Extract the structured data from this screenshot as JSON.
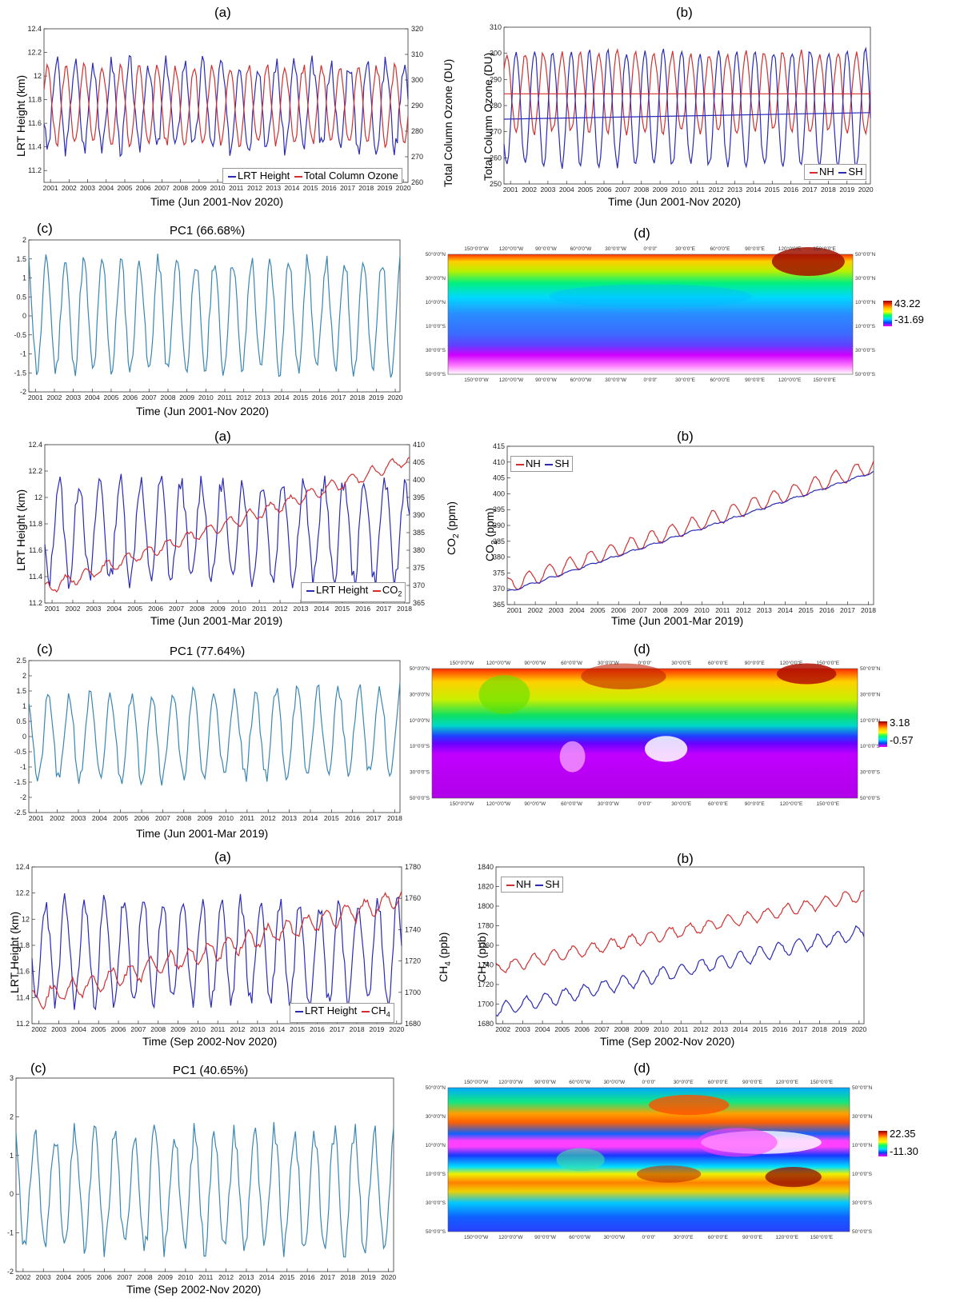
{
  "panel_labels": {
    "a": "(a)",
    "b": "(b)",
    "c": "(c)",
    "d": "(d)"
  },
  "chart_data": [
    {
      "id": "oz_a",
      "type": "line",
      "label": "(a)",
      "x_ticks": [
        "2001",
        "2002",
        "2003",
        "2004",
        "2005",
        "2006",
        "2007",
        "2008",
        "2009",
        "2010",
        "2011",
        "2012",
        "2013",
        "2014",
        "2015",
        "2016",
        "2017",
        "2018",
        "2019",
        "2020"
      ],
      "xlabel": "Time (Jun 2001-Nov 2020)",
      "ylabel": "LRT Height (km)",
      "ylim": [
        11.1,
        12.4
      ],
      "y_ticks": [
        11.2,
        11.4,
        11.6,
        11.8,
        12,
        12.2,
        12.4
      ],
      "y2label": "Total Column Ozone (DU)",
      "y2lim": [
        260,
        320
      ],
      "y2_ticks": [
        260,
        270,
        280,
        290,
        300,
        310,
        320
      ],
      "legend": "bottom-right",
      "series": [
        {
          "name": "LRT Height",
          "axis": "left",
          "color": "#2b2bb8",
          "mean": 11.75,
          "amp": 0.36,
          "trend": 0.0,
          "phase": 0.55,
          "noise": 0.08,
          "seed": 3
        },
        {
          "name": "Total Column Ozone",
          "axis": "right",
          "color": "#d23030",
          "mean": 290,
          "amp": 15,
          "trend": 0,
          "phase": 0.05,
          "noise": 2,
          "seed": 5
        }
      ]
    },
    {
      "id": "oz_b",
      "type": "line",
      "label": "(b)",
      "x_ticks": [
        "2001",
        "2002",
        "2003",
        "2004",
        "2005",
        "2006",
        "2007",
        "2008",
        "2009",
        "2010",
        "2011",
        "2012",
        "2013",
        "2014",
        "2015",
        "2016",
        "2017",
        "2018",
        "2019",
        "2020"
      ],
      "xlabel": "Time (Jun 2001-Nov 2020)",
      "ylabel": "Total Column Ozone (DU)",
      "ylim": [
        250,
        310
      ],
      "y_ticks": [
        250,
        260,
        270,
        280,
        290,
        300,
        310
      ],
      "legend": "bottom-right",
      "series": [
        {
          "name": "NH",
          "color": "#d23030",
          "mean": 285,
          "amp": 15,
          "trend": 0,
          "phase": 0.1,
          "noise": 1.5,
          "seed": 7
        },
        {
          "name": "SH",
          "color": "#2b2bb8",
          "mean": 279,
          "amp": 22,
          "trend": 0,
          "phase": 0.6,
          "noise": 1.5,
          "seed": 9
        }
      ],
      "trend_lines": [
        {
          "color": "#d23030",
          "from": 284.5,
          "to": 284.5
        },
        {
          "color": "#2b2bb8",
          "from": 274.8,
          "to": 277.3
        }
      ]
    },
    {
      "id": "oz_c",
      "type": "line",
      "label": "(c)",
      "title": "PC1 (66.68%)",
      "x_ticks": [
        "2001",
        "2002",
        "2003",
        "2004",
        "2005",
        "2006",
        "2007",
        "2008",
        "2009",
        "2010",
        "2011",
        "2012",
        "2013",
        "2014",
        "2015",
        "2016",
        "2017",
        "2018",
        "2019",
        "2020"
      ],
      "xlabel": "Time (Jun 2001-Nov 2020)",
      "ylim": [
        -2,
        2
      ],
      "y_ticks": [
        -2,
        -1.5,
        -1,
        -0.5,
        0,
        0.5,
        1,
        1.5,
        2
      ],
      "series": [
        {
          "name": "",
          "color": "#3a86b4",
          "mean": 0,
          "amp": 1.45,
          "trend": 0,
          "phase": 0.3,
          "noise": 0.22,
          "seed": 11
        }
      ]
    },
    {
      "id": "oz_d",
      "type": "heatmap",
      "label": "(d)",
      "top_ticks": [
        "150°0'0\"W",
        "120°0'0\"W",
        "90°0'0\"W",
        "60°0'0\"W",
        "30°0'0\"W",
        "0°0'0\"",
        "30°0'0\"E",
        "60°0'0\"E",
        "90°0'0\"E",
        "120°0'0\"E",
        "150°0'0\"E"
      ],
      "left_ticks": [
        "50°0'0\"N",
        "30°0'0\"N",
        "10°0'0\"N",
        "10°0'0\"S",
        "30°0'0\"S",
        "50°0'0\"S"
      ],
      "colorbar": {
        "max": "43.22",
        "min": "-31.69"
      }
    },
    {
      "id": "co2_a",
      "type": "line",
      "label": "(a)",
      "x_ticks": [
        "2001",
        "2002",
        "2003",
        "2004",
        "2005",
        "2006",
        "2007",
        "2008",
        "2009",
        "2010",
        "2011",
        "2012",
        "2013",
        "2014",
        "2015",
        "2016",
        "2017",
        "2018"
      ],
      "xlabel": "Time (Jun 2001-Mar 2019)",
      "ylabel": "LRT Height (km)",
      "ylim": [
        11.2,
        12.4
      ],
      "y_ticks": [
        11.2,
        11.4,
        11.6,
        11.8,
        12,
        12.2,
        12.4
      ],
      "y2label": "CO2 (ppm)",
      "y2lim": [
        365,
        410
      ],
      "y2_ticks": [
        365,
        370,
        375,
        380,
        385,
        390,
        395,
        400,
        405,
        410
      ],
      "legend": "bottom-right",
      "series": [
        {
          "name": "LRT Height",
          "axis": "left",
          "color": "#2b2bb8",
          "mean": 11.75,
          "amp": 0.38,
          "trend": 0,
          "phase": 0.55,
          "noise": 0.08,
          "seed": 13
        },
        {
          "name": "CO2",
          "axis": "right",
          "color": "#d23030",
          "mean": 369,
          "amp": 1.6,
          "trend": 37,
          "phase": 0.2,
          "noise": 0.5,
          "seed": 15
        }
      ]
    },
    {
      "id": "co2_b",
      "type": "line",
      "label": "(b)",
      "x_ticks": [
        "2001",
        "2002",
        "2003",
        "2004",
        "2005",
        "2006",
        "2007",
        "2008",
        "2009",
        "2010",
        "2011",
        "2012",
        "2013",
        "2014",
        "2015",
        "2016",
        "2017",
        "2018"
      ],
      "xlabel": "Time (Jun 2001-Mar 2019)",
      "ylabel": "CO2 (ppm)",
      "ylim": [
        365,
        415
      ],
      "y_ticks": [
        365,
        370,
        375,
        380,
        385,
        390,
        395,
        400,
        405,
        410,
        415
      ],
      "legend": "top-left",
      "series": [
        {
          "name": "NH",
          "color": "#d23030",
          "mean": 371,
          "amp": 2.4,
          "trend": 38,
          "phase": 0.2,
          "noise": 0.3,
          "seed": 17
        },
        {
          "name": "SH",
          "color": "#2b2bb8",
          "mean": 369,
          "amp": 0.3,
          "trend": 38,
          "phase": 0.2,
          "noise": 0.15,
          "seed": 19
        }
      ]
    },
    {
      "id": "co2_c",
      "type": "line",
      "label": "(c)",
      "title": "PC1 (77.64%)",
      "x_ticks": [
        "2001",
        "2002",
        "2003",
        "2004",
        "2005",
        "2006",
        "2007",
        "2008",
        "2009",
        "2010",
        "2011",
        "2012",
        "2013",
        "2014",
        "2015",
        "2016",
        "2017",
        "2018"
      ],
      "xlabel": "Time (Jun 2001-Mar 2019)",
      "ylim": [
        -2.5,
        2.5
      ],
      "y_ticks": [
        -2.5,
        -2,
        -1.5,
        -1,
        -0.5,
        0,
        0.5,
        1,
        1.5,
        2,
        2.5
      ],
      "series": [
        {
          "name": "",
          "color": "#3a86b4",
          "mean": -0.1,
          "amp": 1.4,
          "trend": 0.3,
          "phase": 0.3,
          "noise": 0.25,
          "seed": 21
        }
      ]
    },
    {
      "id": "co2_d",
      "type": "heatmap",
      "label": "(d)",
      "top_ticks": [
        "150°0'0\"W",
        "120°0'0\"W",
        "90°0'0\"W",
        "60°0'0\"W",
        "30°0'0\"W",
        "0°0'0\"",
        "30°0'0\"E",
        "60°0'0\"E",
        "90°0'0\"E",
        "120°0'0\"E",
        "150°0'0\"E"
      ],
      "left_ticks": [
        "50°0'0\"N",
        "30°0'0\"N",
        "10°0'0\"N",
        "10°0'0\"S",
        "30°0'0\"S",
        "50°0'0\"S"
      ],
      "colorbar": {
        "max": "3.18",
        "min": "-0.57"
      }
    },
    {
      "id": "ch4_a",
      "type": "line",
      "label": "(a)",
      "x_ticks": [
        "2002",
        "2003",
        "2004",
        "2005",
        "2006",
        "2007",
        "2008",
        "2009",
        "2010",
        "2011",
        "2012",
        "2013",
        "2014",
        "2015",
        "2016",
        "2017",
        "2018",
        "2019",
        "2020"
      ],
      "xlabel": "Time (Sep 2002-Nov 2020)",
      "ylabel": "LRT Height (km)",
      "ylim": [
        11.2,
        12.4
      ],
      "y_ticks": [
        11.2,
        11.4,
        11.6,
        11.8,
        12,
        12.2,
        12.4
      ],
      "y2label": "CH4 (ppb)",
      "y2lim": [
        1680,
        1780
      ],
      "y2_ticks": [
        1680,
        1700,
        1720,
        1740,
        1760,
        1780
      ],
      "legend": "bottom-right",
      "series": [
        {
          "name": "LRT Height",
          "axis": "left",
          "color": "#2b2bb8",
          "mean": 11.75,
          "amp": 0.38,
          "trend": 0,
          "phase": 0.55,
          "noise": 0.08,
          "seed": 23
        },
        {
          "name": "CH4",
          "axis": "right",
          "color": "#d23030",
          "mean": 1695,
          "amp": 6,
          "trend": 65,
          "phase": 0.2,
          "noise": 2,
          "seed": 25
        }
      ]
    },
    {
      "id": "ch4_b",
      "type": "line",
      "label": "(b)",
      "x_ticks": [
        "2002",
        "2003",
        "2004",
        "2005",
        "2006",
        "2007",
        "2008",
        "2009",
        "2010",
        "2011",
        "2012",
        "2013",
        "2014",
        "2015",
        "2016",
        "2017",
        "2018",
        "2019",
        "2020"
      ],
      "xlabel": "Time (Sep 2002-Nov 2020)",
      "ylabel": "CH4 (ppb)",
      "ylim": [
        1680,
        1840
      ],
      "y_ticks": [
        1680,
        1700,
        1720,
        1740,
        1760,
        1780,
        1800,
        1820,
        1840
      ],
      "legend": "top-left",
      "series": [
        {
          "name": "NH",
          "color": "#d23030",
          "mean": 1737,
          "amp": 6,
          "trend": 75,
          "phase": 0.3,
          "noise": 1.5,
          "seed": 27
        },
        {
          "name": "SH",
          "color": "#2b2bb8",
          "mean": 1694,
          "amp": 7,
          "trend": 80,
          "phase": 0.7,
          "noise": 1.5,
          "seed": 29
        }
      ]
    },
    {
      "id": "ch4_c",
      "type": "line",
      "label": "(c)",
      "title": "PC1 (40.65%)",
      "x_ticks": [
        "2002",
        "2003",
        "2004",
        "2005",
        "2006",
        "2007",
        "2008",
        "2009",
        "2010",
        "2011",
        "2012",
        "2013",
        "2014",
        "2015",
        "2016",
        "2017",
        "2018",
        "2019",
        "2020"
      ],
      "xlabel": "Time (Sep 2002-Nov 2020)",
      "ylim": [
        -2,
        3
      ],
      "y_ticks": [
        -2,
        -1,
        0,
        1,
        2,
        3
      ],
      "series": [
        {
          "name": "",
          "color": "#3a86b4",
          "mean": 0.1,
          "amp": 1.5,
          "trend": 0,
          "phase": 0.3,
          "noise": 0.3,
          "seed": 31
        }
      ]
    },
    {
      "id": "ch4_d",
      "type": "heatmap",
      "label": "(d)",
      "top_ticks": [
        "150°0'0\"W",
        "120°0'0\"W",
        "90°0'0\"W",
        "60°0'0\"W",
        "30°0'0\"W",
        "0°0'0\"",
        "30°0'0\"E",
        "60°0'0\"E",
        "90°0'0\"E",
        "120°0'0\"E",
        "150°0'0\"E"
      ],
      "left_ticks": [
        "50°0'0\"N",
        "30°0'0\"N",
        "10°0'0\"N",
        "10°0'0\"S",
        "30°0'0\"S",
        "50°0'0\"S"
      ],
      "colorbar": {
        "max": "22.35",
        "min": "-11.30"
      }
    }
  ]
}
